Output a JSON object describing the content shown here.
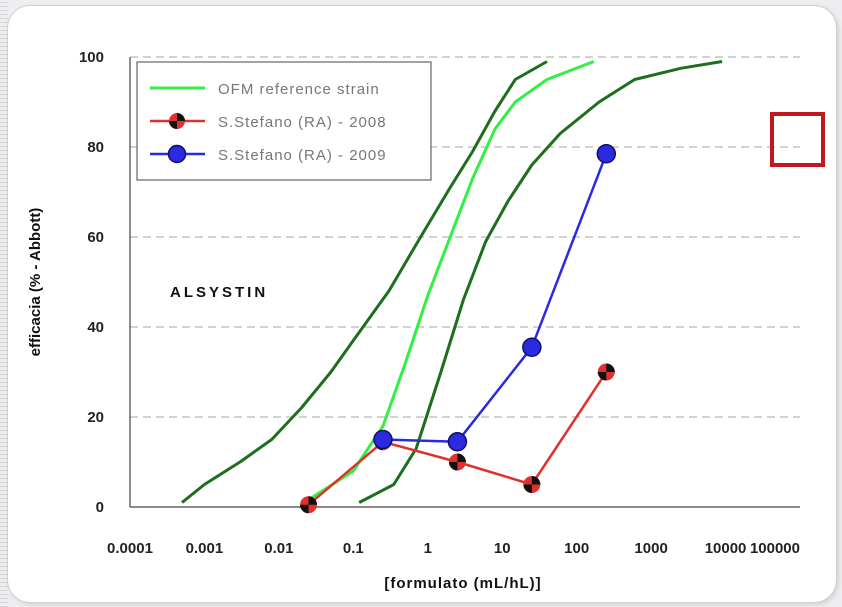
{
  "chart_data": {
    "type": "line",
    "x_scale": "log",
    "xlim": [
      0.0001,
      100000
    ],
    "ylim": [
      0,
      100
    ],
    "x_ticks": [
      "0.0001",
      "0.001",
      "0.01",
      "0.1",
      "1",
      "10",
      "100",
      "1000",
      "10000",
      "100000"
    ],
    "y_ticks": [
      "0",
      "20",
      "40",
      "60",
      "80",
      "100"
    ],
    "xlabel": "[formulato (mL/hL)]",
    "ylabel": "efficacia (% - Abbott)",
    "annotation": "ALSYSTIN",
    "grid": "horizontal-dashed",
    "legend_position": "top-left",
    "highlight_box": "right-of-80",
    "colors": {
      "reference": "#33ee44",
      "reference_bounds": "#1e6e1e",
      "s2008": "#e03030",
      "s2009": "#2a2ae0",
      "highlight": "#c0181c"
    },
    "series": [
      {
        "name": "OFM reference strain",
        "role": "reference",
        "x": [
          0.022,
          0.1,
          0.25,
          0.5,
          1,
          2,
          4,
          8,
          15,
          40,
          170
        ],
        "y": [
          1,
          8,
          18,
          32,
          47,
          60,
          73,
          84,
          90,
          95,
          99
        ]
      },
      {
        "name": "",
        "role": "reference_lower_bound",
        "x": [
          0.12,
          0.35,
          0.7,
          1.5,
          3,
          6,
          12,
          25,
          60,
          200,
          600,
          2500,
          9000
        ],
        "y": [
          1,
          5,
          13,
          30,
          46,
          59,
          68,
          76,
          83,
          90,
          95,
          97.5,
          99
        ]
      },
      {
        "name": "",
        "role": "reference_upper_bound",
        "x": [
          0.0005,
          0.001,
          0.003,
          0.008,
          0.02,
          0.05,
          0.1,
          0.3,
          0.8,
          2,
          4,
          8,
          15,
          40
        ],
        "y": [
          1,
          5,
          10,
          15,
          22,
          30,
          37,
          48,
          60,
          71,
          79,
          88,
          95,
          99
        ]
      },
      {
        "name": "S.Stefano (RA) - 2008",
        "role": "s2008",
        "x": [
          0.025,
          0.25,
          2.5,
          25,
          250
        ],
        "y": [
          0.5,
          14.5,
          10,
          5,
          30
        ]
      },
      {
        "name": "S.Stefano (RA) - 2009",
        "role": "s2009",
        "x": [
          0.25,
          2.5,
          25,
          250
        ],
        "y": [
          15,
          14.5,
          35.5,
          78.5
        ]
      }
    ]
  }
}
